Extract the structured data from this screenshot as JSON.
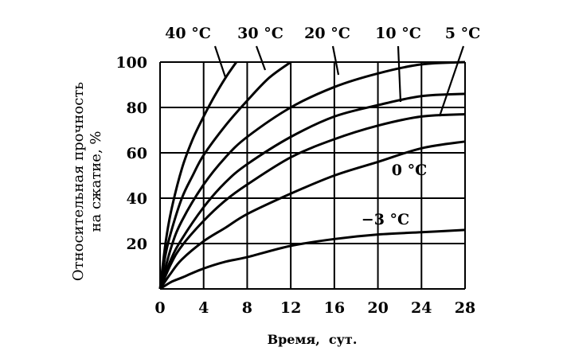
{
  "chart_data": {
    "type": "line",
    "xlabel": "Время,  сут.",
    "ylabel_line1": "Относительная прочность",
    "ylabel_line2": "на сжатие, %",
    "xlim": [
      0,
      28
    ],
    "ylim": [
      0,
      100
    ],
    "x_ticks": [
      "0",
      "4",
      "8",
      "12",
      "16",
      "20",
      "24",
      "28"
    ],
    "y_ticks": [
      "20",
      "40",
      "60",
      "80",
      "100"
    ],
    "grid": true,
    "series": [
      {
        "name": "40 °C",
        "x": [
          0,
          0.5,
          1,
          2,
          3,
          4,
          5,
          6,
          7
        ],
        "y": [
          0,
          20,
          34,
          53,
          66,
          76,
          85,
          93,
          100
        ]
      },
      {
        "name": "30 °C",
        "x": [
          0,
          0.5,
          1,
          2,
          3,
          4,
          6,
          8,
          10,
          12
        ],
        "y": [
          0,
          15,
          25,
          40,
          50,
          59,
          72,
          83,
          93,
          100
        ]
      },
      {
        "name": "20 °C",
        "x": [
          0,
          1,
          2,
          4,
          6,
          8,
          12,
          16,
          20,
          24,
          28
        ],
        "y": [
          0,
          18,
          30,
          46,
          58,
          67,
          80,
          89,
          95,
          99,
          100
        ]
      },
      {
        "name": "10 °C",
        "x": [
          0,
          1,
          2,
          4,
          6,
          8,
          12,
          16,
          20,
          24,
          28
        ],
        "y": [
          0,
          13,
          22,
          36,
          47,
          55,
          67,
          76,
          81,
          85,
          86
        ]
      },
      {
        "name": "5 °C",
        "x": [
          0,
          1,
          2,
          4,
          6,
          8,
          12,
          16,
          20,
          24,
          28
        ],
        "y": [
          0,
          11,
          19,
          30,
          39,
          46,
          58,
          66,
          72,
          76,
          77
        ]
      },
      {
        "name": "0 °C",
        "x": [
          0,
          1,
          2,
          4,
          6,
          8,
          12,
          16,
          20,
          24,
          28
        ],
        "y": [
          0,
          7,
          13,
          21,
          27,
          33,
          42,
          50,
          56,
          62,
          65
        ]
      },
      {
        "name": "−3 °C",
        "x": [
          0,
          1,
          2,
          4,
          6,
          8,
          12,
          16,
          20,
          24,
          28
        ],
        "y": [
          0,
          3,
          5,
          9,
          12,
          14,
          19,
          22,
          24,
          25,
          26
        ]
      }
    ]
  }
}
